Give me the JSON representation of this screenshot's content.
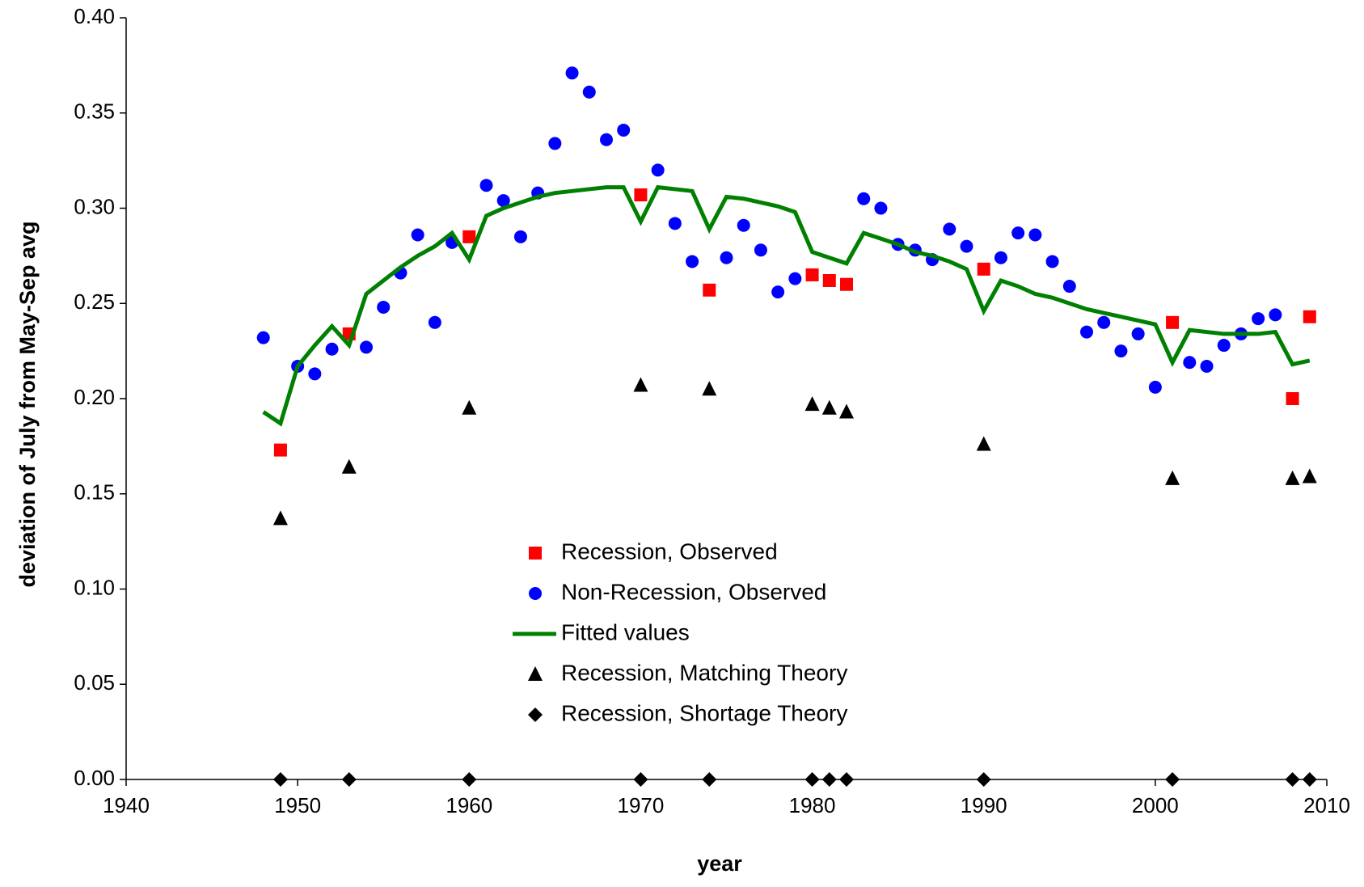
{
  "chart_data": {
    "type": "scatter",
    "x_label": "year",
    "y_label": "deviation of July from May-Sep avg",
    "xlim": [
      1940,
      2010
    ],
    "xticks": [
      1940,
      1950,
      1960,
      1970,
      1980,
      1990,
      2000,
      2010
    ],
    "ylim": [
      0,
      0.4
    ],
    "yticks": [
      {
        "value": 0,
        "label": "0.00"
      },
      {
        "value": 0.05,
        "label": "0.05"
      },
      {
        "value": 0.1,
        "label": "0.10"
      },
      {
        "value": 0.15,
        "label": "0.15"
      },
      {
        "value": 0.2,
        "label": "0.20"
      },
      {
        "value": 0.25,
        "label": "0.25"
      },
      {
        "value": 0.3,
        "label": "0.30"
      },
      {
        "value": 0.35,
        "label": "0.35"
      },
      {
        "value": 0.4,
        "label": "0.40"
      }
    ],
    "legend": "center",
    "series": [
      {
        "name": "Recession, Observed",
        "color": "#ff0000",
        "marker": "square",
        "x": [
          1949,
          1953,
          1960,
          1970,
          1974,
          1980,
          1981,
          1982,
          1990,
          2001,
          2008,
          2009
        ],
        "values": [
          0.173,
          0.234,
          0.285,
          0.307,
          0.257,
          0.265,
          0.262,
          0.26,
          0.268,
          0.24,
          0.2,
          0.243
        ]
      },
      {
        "name": "Non-Recession, Observed",
        "color": "#0000ff",
        "marker": "circle",
        "x": [
          1948,
          1950,
          1951,
          1952,
          1954,
          1955,
          1956,
          1957,
          1958,
          1959,
          1961,
          1962,
          1963,
          1964,
          1965,
          1966,
          1967,
          1968,
          1969,
          1971,
          1972,
          1973,
          1975,
          1976,
          1977,
          1978,
          1979,
          1983,
          1984,
          1985,
          1986,
          1987,
          1988,
          1989,
          1991,
          1992,
          1993,
          1994,
          1995,
          1996,
          1997,
          1998,
          1999,
          2000,
          2002,
          2003,
          2004,
          2005,
          2006,
          2007
        ],
        "values": [
          0.232,
          0.217,
          0.213,
          0.226,
          0.227,
          0.248,
          0.266,
          0.286,
          0.24,
          0.282,
          0.312,
          0.304,
          0.285,
          0.308,
          0.334,
          0.371,
          0.361,
          0.336,
          0.341,
          0.32,
          0.292,
          0.272,
          0.274,
          0.291,
          0.278,
          0.256,
          0.263,
          0.305,
          0.3,
          0.281,
          0.278,
          0.273,
          0.289,
          0.28,
          0.274,
          0.287,
          0.286,
          0.272,
          0.259,
          0.235,
          0.24,
          0.225,
          0.234,
          0.206,
          0.219,
          0.217,
          0.228,
          0.234,
          0.242,
          0.244
        ]
      },
      {
        "name": "Fitted values",
        "color": "#008000",
        "marker": "line",
        "x": [
          1948,
          1949,
          1950,
          1951,
          1952,
          1953,
          1954,
          1955,
          1956,
          1957,
          1958,
          1959,
          1960,
          1961,
          1962,
          1963,
          1964,
          1965,
          1966,
          1967,
          1968,
          1969,
          1970,
          1971,
          1972,
          1973,
          1974,
          1975,
          1976,
          1977,
          1978,
          1979,
          1980,
          1981,
          1982,
          1983,
          1984,
          1985,
          1986,
          1987,
          1988,
          1989,
          1990,
          1991,
          1992,
          1993,
          1994,
          1995,
          1996,
          1997,
          1998,
          1999,
          2000,
          2001,
          2002,
          2003,
          2004,
          2005,
          2006,
          2007,
          2008,
          2009
        ],
        "values": [
          0.193,
          0.187,
          0.217,
          0.228,
          0.238,
          0.228,
          0.255,
          0.262,
          0.269,
          0.275,
          0.28,
          0.287,
          0.273,
          0.296,
          0.3,
          0.303,
          0.306,
          0.308,
          0.309,
          0.31,
          0.311,
          0.311,
          0.293,
          0.311,
          0.31,
          0.309,
          0.289,
          0.306,
          0.305,
          0.303,
          0.301,
          0.298,
          0.277,
          0.274,
          0.271,
          0.287,
          0.284,
          0.281,
          0.277,
          0.275,
          0.272,
          0.268,
          0.246,
          0.262,
          0.259,
          0.255,
          0.253,
          0.25,
          0.247,
          0.245,
          0.243,
          0.241,
          0.239,
          0.219,
          0.236,
          0.235,
          0.234,
          0.234,
          0.234,
          0.235,
          0.218,
          0.22
        ]
      },
      {
        "name": "Recession, Matching Theory",
        "color": "#000000",
        "marker": "triangle",
        "x": [
          1949,
          1953,
          1960,
          1970,
          1974,
          1980,
          1981,
          1982,
          1990,
          2001,
          2008,
          2009
        ],
        "values": [
          0.137,
          0.164,
          0.195,
          0.207,
          0.205,
          0.197,
          0.195,
          0.193,
          0.176,
          0.158,
          0.158,
          0.159
        ]
      },
      {
        "name": "Recession, Shortage Theory",
        "color": "#000000",
        "marker": "diamond",
        "x": [
          1949,
          1953,
          1960,
          1970,
          1974,
          1980,
          1981,
          1982,
          1990,
          2001,
          2008,
          2009
        ],
        "values": [
          0,
          0,
          0,
          0,
          0,
          0,
          0,
          0,
          0,
          0,
          0,
          0
        ]
      }
    ]
  }
}
